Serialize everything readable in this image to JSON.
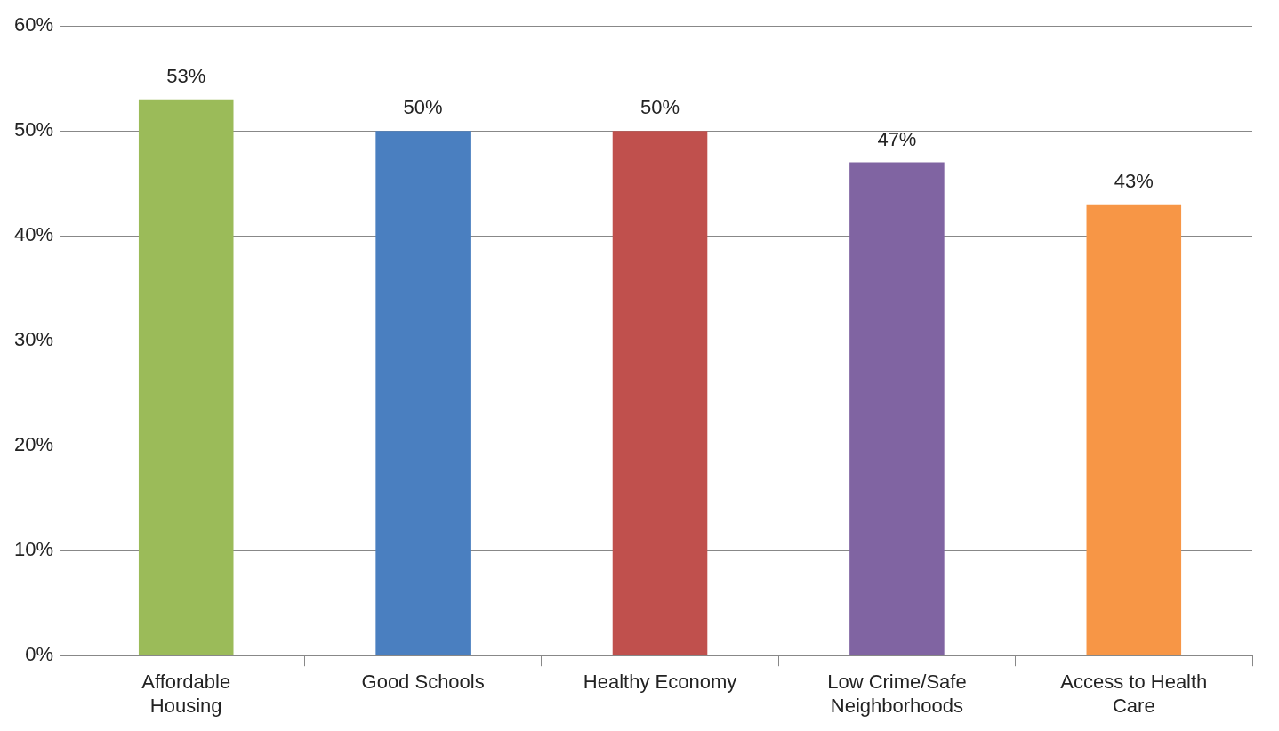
{
  "chart_data": {
    "type": "bar",
    "categories": [
      "Affordable Housing",
      "Good Schools",
      "Healthy Economy",
      "Low Crime/Safe Neighborhoods",
      "Access to Health Care"
    ],
    "values": [
      53,
      50,
      50,
      47,
      43
    ],
    "colors": [
      "#9bbb59",
      "#4a7fc0",
      "#c0504d",
      "#8064a2",
      "#f79646"
    ],
    "value_labels": [
      "53%",
      "50%",
      "50%",
      "47%",
      "43%"
    ],
    "ylim": [
      0,
      60
    ],
    "yticks": [
      {
        "value": 0,
        "label": "0%"
      },
      {
        "value": 10,
        "label": "10%"
      },
      {
        "value": 20,
        "label": "20%"
      },
      {
        "value": 30,
        "label": "30%"
      },
      {
        "value": 40,
        "label": "40%"
      },
      {
        "value": 50,
        "label": "50%"
      },
      {
        "value": 60,
        "label": "60%"
      }
    ],
    "grid": "y",
    "legend": false
  }
}
